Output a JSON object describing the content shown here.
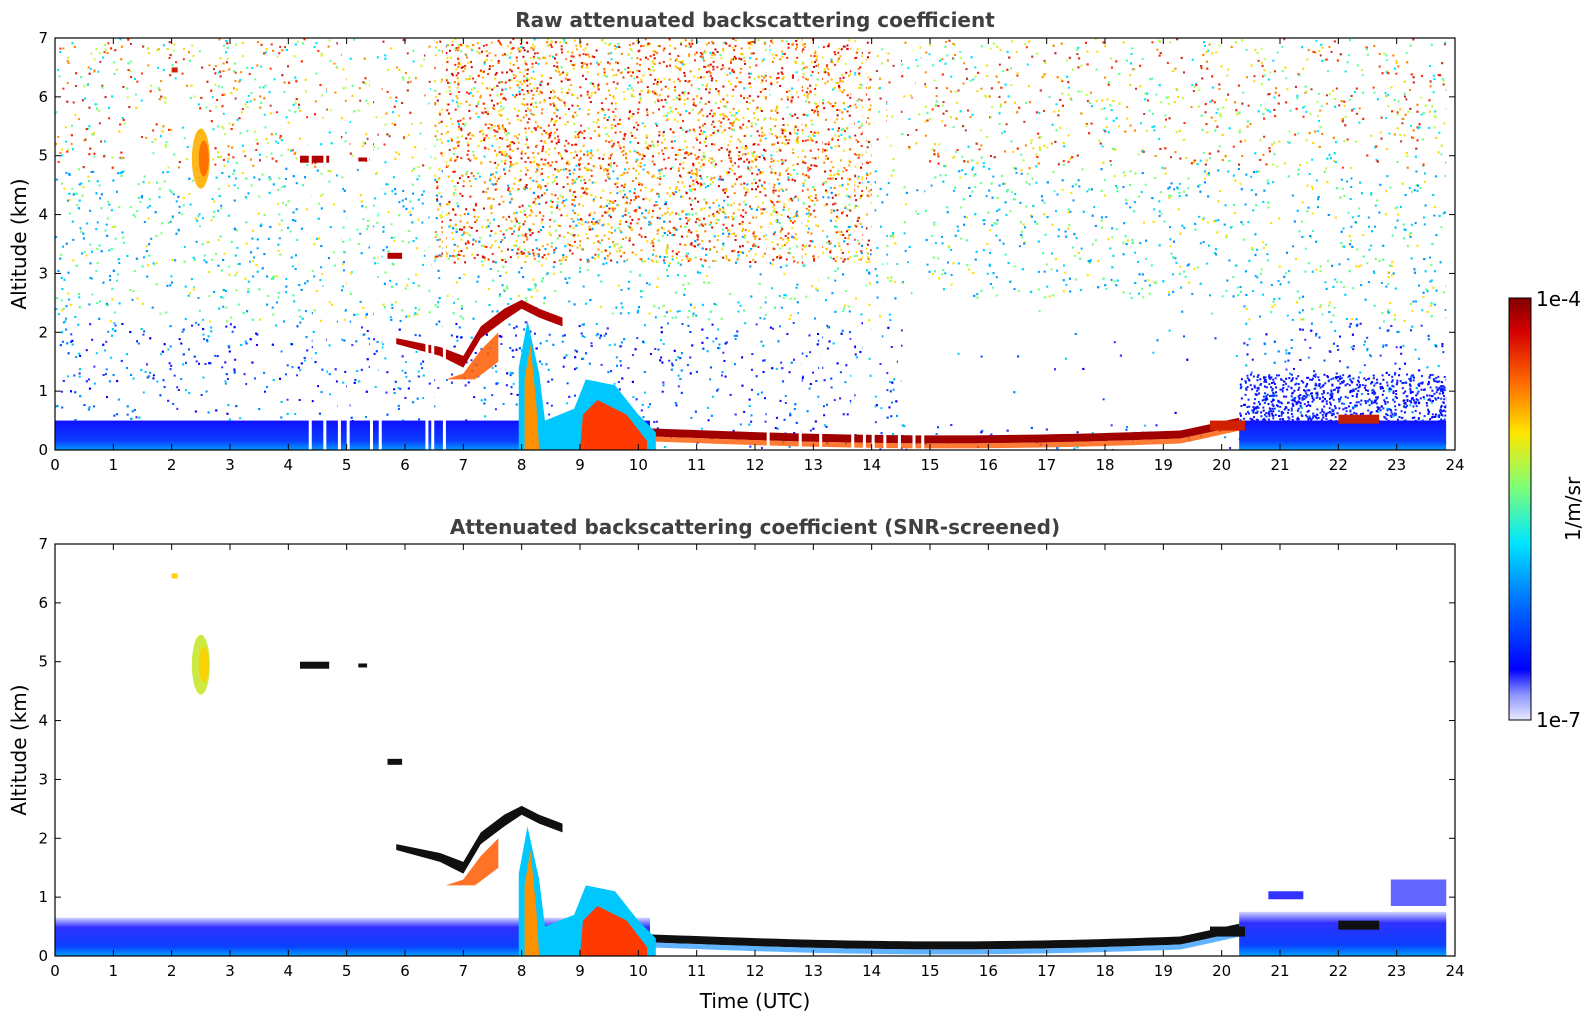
{
  "chart_data": [
    {
      "type": "heatmap",
      "title": "Raw attenuated backscattering coefficient",
      "xlabel": "",
      "ylabel": "Altitude (km)",
      "xlim": [
        0,
        24
      ],
      "ylim": [
        0,
        7
      ],
      "xticks": [
        "0",
        "1",
        "2",
        "3",
        "4",
        "5",
        "6",
        "7",
        "8",
        "9",
        "10",
        "11",
        "12",
        "13",
        "14",
        "15",
        "16",
        "17",
        "18",
        "19",
        "20",
        "21",
        "22",
        "23",
        "24"
      ],
      "yticks": [
        "0",
        "1",
        "2",
        "3",
        "4",
        "5",
        "6",
        "7"
      ],
      "data_gaps_utc": [
        4.35,
        4.6,
        4.85,
        5.0,
        5.4,
        5.55,
        6.35,
        6.45,
        6.65,
        12.2,
        12.75,
        13.1,
        13.65,
        13.85,
        14.0,
        14.2,
        14.45,
        14.7,
        14.85
      ],
      "layers": [
        {
          "feature": "boundary-layer aerosol",
          "x": [
            0,
            24
          ],
          "top_km": 0.5
        },
        {
          "feature": "low cloud base",
          "x": [
            10.2,
            20.3
          ],
          "altitude_km": [
            0.3,
            0.2,
            0.3
          ]
        },
        {
          "feature": "cloud",
          "x": [
            5.8,
            8.7
          ],
          "altitude_km": [
            1.7,
            2.4
          ]
        },
        {
          "feature": "cloud",
          "x": [
            5.7,
            5.9
          ],
          "altitude_km": 3.3
        },
        {
          "feature": "cloud",
          "x": [
            4.2,
            4.7
          ],
          "altitude_km": 4.9
        },
        {
          "feature": "ice cloud",
          "x": [
            2.3,
            2.7
          ],
          "altitude_km": [
            4.5,
            5.5
          ]
        },
        {
          "feature": "precipitation / convection",
          "x": [
            7.9,
            10.2
          ],
          "altitude_km": [
            0,
            1.3
          ]
        }
      ]
    },
    {
      "type": "heatmap",
      "title": "Attenuated backscattering coefficient (SNR-screened)",
      "xlabel": "Time (UTC)",
      "ylabel": "Altitude (km)",
      "xlim": [
        0,
        24
      ],
      "ylim": [
        0,
        7
      ],
      "xticks": [
        "0",
        "1",
        "2",
        "3",
        "4",
        "5",
        "6",
        "7",
        "8",
        "9",
        "10",
        "11",
        "12",
        "13",
        "14",
        "15",
        "16",
        "17",
        "18",
        "19",
        "20",
        "21",
        "22",
        "23",
        "24"
      ],
      "yticks": [
        "0",
        "1",
        "2",
        "3",
        "4",
        "5",
        "6",
        "7"
      ]
    }
  ],
  "colorbar": {
    "max_label": "1e-4",
    "min_label": "1e-7",
    "unit_label": "1/m/sr",
    "colors": [
      "#e8eaff",
      "#0000ff",
      "#0080ff",
      "#00e5ff",
      "#7cff79",
      "#ffe600",
      "#ff6a00",
      "#d40000",
      "#800000"
    ]
  }
}
